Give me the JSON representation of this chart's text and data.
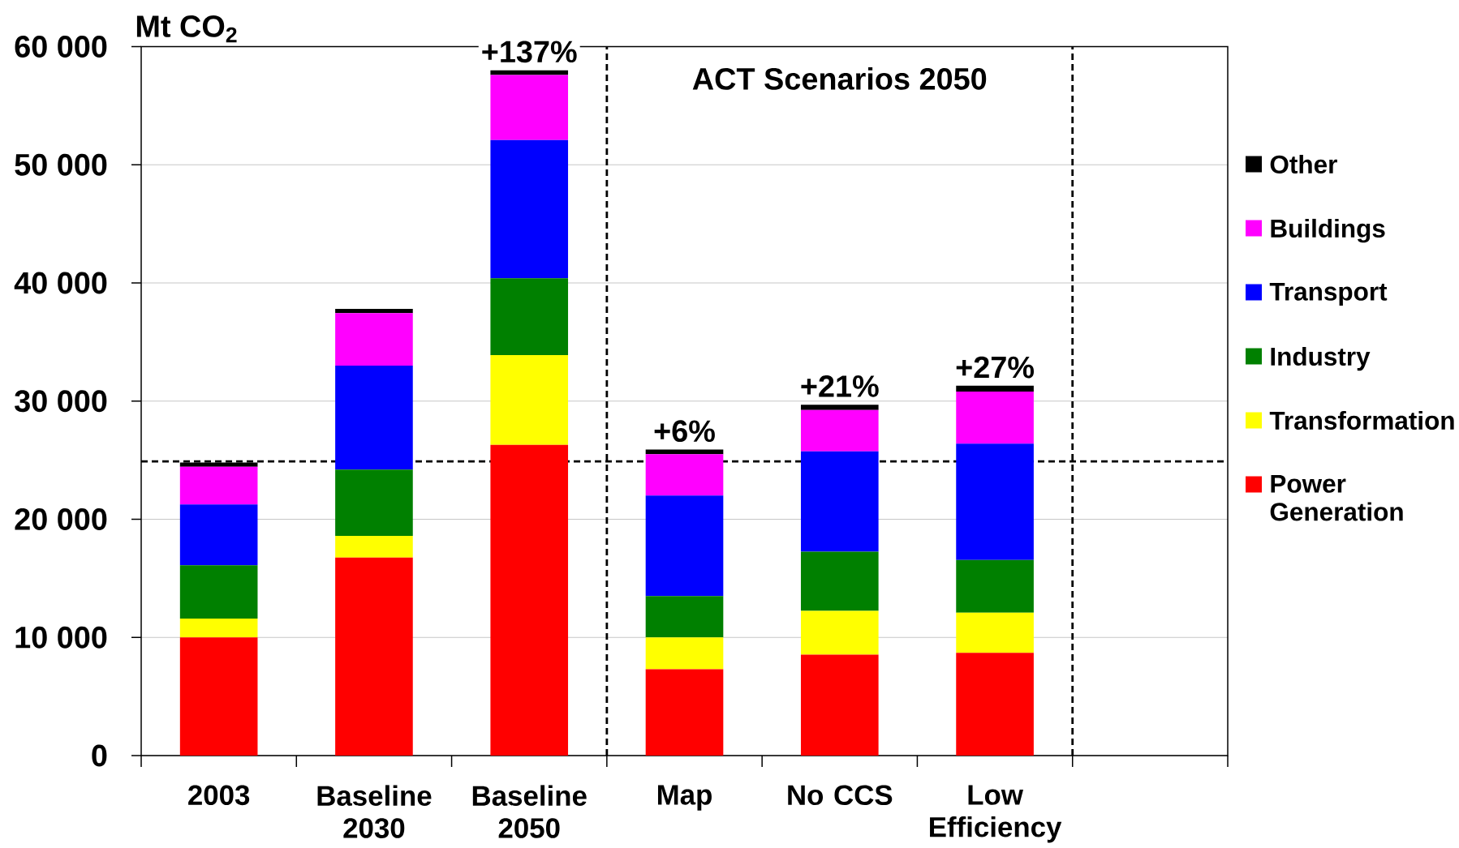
{
  "chart_data": {
    "type": "bar",
    "stacked": true,
    "ylabel": "Mt CO$_{2}$",
    "categories": [
      "2003",
      "Baseline 2030",
      "Baseline 2050",
      "Map",
      "No CCS",
      "Low Efficiency",
      null
    ],
    "series": [
      {
        "name": "Power Generation",
        "color": "#ff0000",
        "values": [
          10000,
          16750,
          26300,
          7300,
          8550,
          8700,
          null
        ]
      },
      {
        "name": "Transformation",
        "color": "#ffff00",
        "values": [
          1600,
          1850,
          7600,
          2700,
          3700,
          3400,
          null
        ]
      },
      {
        "name": "Industry",
        "color": "#008000",
        "values": [
          4500,
          5600,
          6500,
          3500,
          5000,
          4450,
          null
        ]
      },
      {
        "name": "Transport",
        "color": "#0000ff",
        "values": [
          5150,
          8800,
          11700,
          8500,
          8500,
          9850,
          null
        ]
      },
      {
        "name": "Buildings",
        "color": "#ff00ff",
        "values": [
          3200,
          4450,
          5500,
          3500,
          3500,
          4400,
          null
        ]
      },
      {
        "name": "Other",
        "color": "#000000",
        "values": [
          350,
          350,
          400,
          400,
          450,
          500,
          null
        ]
      }
    ],
    "ylim": [
      0,
      60000
    ],
    "yticks": [
      0,
      {
        "value": 10000,
        "label": "10 000"
      },
      {
        "value": 20000,
        "label": "20 000"
      },
      {
        "value": 30000,
        "label": "30 000"
      },
      {
        "value": 40000,
        "label": "40 000"
      },
      {
        "value": 50000,
        "label": "50 000"
      },
      {
        "value": 60000,
        "label": "60 000"
      }
    ],
    "grid": "y",
    "legend": "right",
    "ref_lines": [
      {
        "axis": "y",
        "value": 24900,
        "line_style": "dashed"
      }
    ],
    "annotations": [
      "ACT Scenarios 2050",
      {
        "text": "+137%",
        "x": "Baseline 2050",
        "y": 58000
      },
      {
        "text": "+6%",
        "x": "Map",
        "y": 25900
      },
      {
        "text": "+21%",
        "x": "No CCS",
        "y": 29700
      },
      {
        "text": "+27%",
        "x": "Low Efficiency",
        "y": 31300
      }
    ]
  }
}
